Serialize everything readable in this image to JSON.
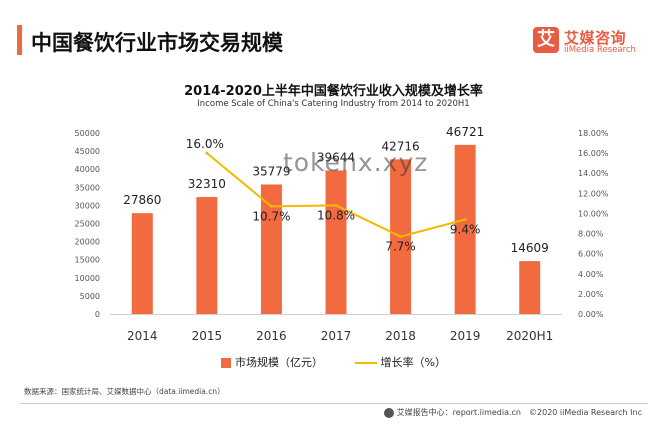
{
  "header": {
    "title": "中国餐饮行业市场交易规模",
    "logo_mark": "艾",
    "logo_cn": "艾媒咨询",
    "logo_en": "iiMedia Research",
    "accent_color": "#ef6a3b"
  },
  "watermark": "tokenx.xyz",
  "chart_data": {
    "type": "bar",
    "title": "2014-2020上半年中国餐饮行业收入规模及增长率",
    "subtitle": "Income Scale of China's Catering Industry from 2014 to 2020H1",
    "categories": [
      "2014",
      "2015",
      "2016",
      "2017",
      "2018",
      "2019",
      "2020H1"
    ],
    "series": [
      {
        "name": "市场规模（亿元）",
        "type": "bar",
        "axis": "left",
        "color": "#f26a3f",
        "values": [
          27860,
          32310,
          35779,
          39644,
          42716,
          46721,
          14609
        ],
        "labels": [
          "27860",
          "32310",
          "35779",
          "39644",
          "42716",
          "46721",
          "14609"
        ]
      },
      {
        "name": "增长率（%）",
        "type": "line",
        "axis": "right",
        "color": "#f5b800",
        "values": [
          null,
          16.0,
          10.7,
          10.8,
          7.7,
          9.4,
          null
        ],
        "labels": [
          "",
          "16.0%",
          "10.7%",
          "10.8%",
          "7.7%",
          "9.4%",
          ""
        ]
      }
    ],
    "y_left": {
      "min": 0,
      "max": 50000,
      "step": 5000,
      "ticks": [
        "0",
        "5000",
        "10000",
        "15000",
        "20000",
        "25000",
        "30000",
        "35000",
        "40000",
        "45000",
        "50000"
      ]
    },
    "y_right": {
      "min": 0,
      "max": 18,
      "step": 2,
      "ticks": [
        "0.00%",
        "2.00%",
        "4.00%",
        "6.00%",
        "8.00%",
        "10.00%",
        "12.00%",
        "14.00%",
        "16.00%",
        "18.00%"
      ]
    },
    "grid": false,
    "legend_position": "bottom"
  },
  "legend": {
    "bar_label": "市场规模（亿元）",
    "line_label": "增长率（%）"
  },
  "footer": {
    "source": "数据来源：国家统计局、艾媒数据中心（data.iimedia.cn）",
    "site": "艾媒报告中心：report.iimedia.cn",
    "copyright": "©2020  iiMedia Research  Inc"
  }
}
